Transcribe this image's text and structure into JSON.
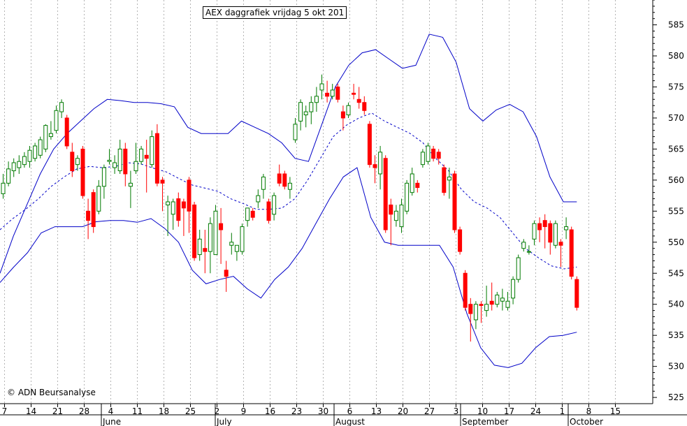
{
  "chart_title": "AEX daggrafiek vrijdag 5 okt 201",
  "copyright": "© ADN Beursanalyse",
  "colors": {
    "up": "#007a00",
    "down": "#ff0000",
    "band": "#0000c8",
    "grid": "#b4b4b4"
  },
  "chart_data": {
    "type": "candlestick",
    "title": "AEX daggrafiek vrijdag 5 okt 201",
    "ylim": [
      524,
      589
    ],
    "y_ticks": [
      525,
      530,
      535,
      540,
      545,
      550,
      555,
      560,
      565,
      570,
      575,
      580,
      585
    ],
    "x_tick_labels": [
      "7",
      "14",
      "21",
      "28",
      "4",
      "11",
      "18",
      "25",
      "2",
      "9",
      "16",
      "23",
      "30",
      "6",
      "13",
      "20",
      "27",
      "3",
      "10",
      "17",
      "24",
      "1",
      "8",
      "15"
    ],
    "month_labels": [
      "June",
      "July",
      "August",
      "September",
      "October"
    ],
    "grid": "vertical dashed",
    "candles": [
      {
        "o": 557.8,
        "h": 561,
        "l": 557,
        "c": 559.5
      },
      {
        "o": 559.5,
        "h": 563,
        "l": 559,
        "c": 561.8
      },
      {
        "o": 561.5,
        "h": 563.5,
        "l": 560.5,
        "c": 562.8
      },
      {
        "o": 562,
        "h": 564,
        "l": 561,
        "c": 563
      },
      {
        "o": 562.5,
        "h": 564.5,
        "l": 562,
        "c": 563.8
      },
      {
        "o": 563,
        "h": 565.5,
        "l": 562,
        "c": 564.8
      },
      {
        "o": 563.5,
        "h": 566,
        "l": 563,
        "c": 565.5
      },
      {
        "o": 564,
        "h": 567,
        "l": 563.5,
        "c": 566.5
      },
      {
        "o": 565,
        "h": 569,
        "l": 564.5,
        "c": 568.8
      },
      {
        "o": 567,
        "h": 569.5,
        "l": 566.5,
        "c": 567.5
      },
      {
        "o": 568,
        "h": 572,
        "l": 567.5,
        "c": 571.2
      },
      {
        "o": 571,
        "h": 573,
        "l": 570,
        "c": 572.5
      },
      {
        "o": 570,
        "h": 570.5,
        "l": 565,
        "c": 565.5
      },
      {
        "o": 564.5,
        "h": 566,
        "l": 560.5,
        "c": 561.5
      },
      {
        "o": 562.5,
        "h": 564,
        "l": 561.5,
        "c": 563.5
      },
      {
        "o": 565,
        "h": 565.5,
        "l": 557,
        "c": 557.5
      },
      {
        "o": 555,
        "h": 557,
        "l": 550.5,
        "c": 553.5
      },
      {
        "o": 558,
        "h": 558.5,
        "l": 551.5,
        "c": 552.5
      },
      {
        "o": 555,
        "h": 560,
        "l": 554.5,
        "c": 559
      },
      {
        "o": 559,
        "h": 562.5,
        "l": 557,
        "c": 562
      },
      {
        "o": 563,
        "h": 565,
        "l": 562.5,
        "c": 563.2
      },
      {
        "o": 562,
        "h": 564,
        "l": 561,
        "c": 562.8
      },
      {
        "o": 561.5,
        "h": 566.5,
        "l": 561,
        "c": 565
      },
      {
        "o": 565,
        "h": 566,
        "l": 559,
        "c": 561
      },
      {
        "o": 559,
        "h": 561.5,
        "l": 555.5,
        "c": 559.5
      },
      {
        "o": 561.5,
        "h": 566,
        "l": 561,
        "c": 563
      },
      {
        "o": 563,
        "h": 565.5,
        "l": 562.5,
        "c": 565
      },
      {
        "o": 564,
        "h": 566.5,
        "l": 558,
        "c": 563.5
      },
      {
        "o": 562.5,
        "h": 568,
        "l": 562,
        "c": 567
      },
      {
        "o": 567.5,
        "h": 569,
        "l": 559,
        "c": 559.5
      },
      {
        "o": 560,
        "h": 560.5,
        "l": 555,
        "c": 559.5
      },
      {
        "o": 556,
        "h": 557.5,
        "l": 551,
        "c": 556.5
      },
      {
        "o": 554.5,
        "h": 557,
        "l": 552,
        "c": 556.5
      },
      {
        "o": 557,
        "h": 558,
        "l": 552.5,
        "c": 553.5
      },
      {
        "o": 556.5,
        "h": 557,
        "l": 551,
        "c": 555.5
      },
      {
        "o": 560,
        "h": 560.5,
        "l": 551.5,
        "c": 555
      },
      {
        "o": 556,
        "h": 556.5,
        "l": 547,
        "c": 547.5
      },
      {
        "o": 548,
        "h": 552,
        "l": 547,
        "c": 550.5
      },
      {
        "o": 549,
        "h": 552,
        "l": 545,
        "c": 548.5
      },
      {
        "o": 548.5,
        "h": 554,
        "l": 545,
        "c": 553
      },
      {
        "o": 548,
        "h": 556,
        "l": 548,
        "c": 555
      },
      {
        "o": 553,
        "h": 555.5,
        "l": 546.5,
        "c": 552
      },
      {
        "o": 545.5,
        "h": 547,
        "l": 542,
        "c": 544.5
      },
      {
        "o": 549.5,
        "h": 551.5,
        "l": 548,
        "c": 550
      },
      {
        "o": 548.5,
        "h": 549,
        "l": 547,
        "c": 549.5
      },
      {
        "o": 548.5,
        "h": 553,
        "l": 548,
        "c": 552.5
      },
      {
        "o": 553.5,
        "h": 555.5,
        "l": 552.5,
        "c": 555.5
      },
      {
        "o": 555,
        "h": 555.5,
        "l": 553.5,
        "c": 554
      },
      {
        "o": 556.5,
        "h": 558.5,
        "l": 555.5,
        "c": 557.5
      },
      {
        "o": 558.5,
        "h": 561,
        "l": 557,
        "c": 560.5
      },
      {
        "o": 556.5,
        "h": 557,
        "l": 553,
        "c": 553.5
      },
      {
        "o": 554.5,
        "h": 558,
        "l": 553.5,
        "c": 557.5
      },
      {
        "o": 561,
        "h": 562.5,
        "l": 559,
        "c": 559.5
      },
      {
        "o": 561,
        "h": 561.5,
        "l": 558.5,
        "c": 559
      },
      {
        "o": 558.5,
        "h": 560.5,
        "l": 557,
        "c": 559.5
      },
      {
        "o": 566.5,
        "h": 570,
        "l": 566,
        "c": 569
      },
      {
        "o": 569.5,
        "h": 573,
        "l": 568,
        "c": 572.5
      },
      {
        "o": 570.5,
        "h": 572,
        "l": 568.5,
        "c": 571
      },
      {
        "o": 571,
        "h": 573.5,
        "l": 569,
        "c": 572.5
      },
      {
        "o": 572.5,
        "h": 575,
        "l": 571,
        "c": 573.5
      },
      {
        "o": 574.5,
        "h": 577,
        "l": 573,
        "c": 575.5
      },
      {
        "o": 574,
        "h": 576,
        "l": 572.5,
        "c": 573.5
      },
      {
        "o": 573.5,
        "h": 575.5,
        "l": 573,
        "c": 574.5
      },
      {
        "o": 575,
        "h": 575.5,
        "l": 572.5,
        "c": 573
      },
      {
        "o": 571,
        "h": 572,
        "l": 568,
        "c": 570
      },
      {
        "o": 570.5,
        "h": 572.5,
        "l": 570,
        "c": 572
      },
      {
        "o": 574,
        "h": 575.5,
        "l": 573,
        "c": 573.8
      },
      {
        "o": 573,
        "h": 575,
        "l": 571.5,
        "c": 572.5
      },
      {
        "o": 572.5,
        "h": 573.5,
        "l": 570.5,
        "c": 571.2
      },
      {
        "o": 569,
        "h": 569.5,
        "l": 562,
        "c": 562.5
      },
      {
        "o": 562.5,
        "h": 564,
        "l": 559.5,
        "c": 562
      },
      {
        "o": 561,
        "h": 565.5,
        "l": 558.5,
        "c": 564.5
      },
      {
        "o": 563.5,
        "h": 564,
        "l": 551.5,
        "c": 552
      },
      {
        "o": 556,
        "h": 557,
        "l": 549.5,
        "c": 554.5
      },
      {
        "o": 553.5,
        "h": 556,
        "l": 552.5,
        "c": 555
      },
      {
        "o": 552.5,
        "h": 557,
        "l": 551.5,
        "c": 556
      },
      {
        "o": 555,
        "h": 560,
        "l": 554.5,
        "c": 559.5
      },
      {
        "o": 558,
        "h": 562,
        "l": 557.5,
        "c": 561
      },
      {
        "o": 559.5,
        "h": 560,
        "l": 558,
        "c": 558.8
      },
      {
        "o": 562.5,
        "h": 565,
        "l": 562,
        "c": 564.5
      },
      {
        "o": 563,
        "h": 566,
        "l": 562.5,
        "c": 565.5
      },
      {
        "o": 565,
        "h": 565.5,
        "l": 563,
        "c": 563.5
      },
      {
        "o": 564.5,
        "h": 565,
        "l": 562.5,
        "c": 563.5
      },
      {
        "o": 562,
        "h": 562.5,
        "l": 557.5,
        "c": 558
      },
      {
        "o": 560,
        "h": 562,
        "l": 557,
        "c": 560.5
      },
      {
        "o": 561,
        "h": 561.5,
        "l": 551.5,
        "c": 552
      },
      {
        "o": 552,
        "h": 552.5,
        "l": 548,
        "c": 548.5
      },
      {
        "o": 545,
        "h": 545.5,
        "l": 539,
        "c": 539.5
      },
      {
        "o": 540,
        "h": 541,
        "l": 534,
        "c": 538.5
      },
      {
        "o": 537.5,
        "h": 540.5,
        "l": 536,
        "c": 540
      },
      {
        "o": 540,
        "h": 540.5,
        "l": 537,
        "c": 539.8
      },
      {
        "o": 539,
        "h": 543,
        "l": 538,
        "c": 540
      },
      {
        "o": 540.5,
        "h": 543.5,
        "l": 539,
        "c": 540
      },
      {
        "o": 540,
        "h": 542,
        "l": 539.5,
        "c": 541.5
      },
      {
        "o": 540.5,
        "h": 542.5,
        "l": 539,
        "c": 541
      },
      {
        "o": 539.5,
        "h": 542,
        "l": 539,
        "c": 540.5
      },
      {
        "o": 541,
        "h": 544.5,
        "l": 540,
        "c": 544
      },
      {
        "o": 544,
        "h": 548,
        "l": 543.5,
        "c": 547.5
      },
      {
        "o": 549,
        "h": 550.5,
        "l": 548.5,
        "c": 550
      },
      {
        "o": 548.5,
        "h": 549.5,
        "l": 548,
        "c": 548.5
      },
      {
        "o": 550.5,
        "h": 553.5,
        "l": 549.5,
        "c": 553
      },
      {
        "o": 553,
        "h": 554,
        "l": 550,
        "c": 552
      },
      {
        "o": 553.5,
        "h": 554.5,
        "l": 549,
        "c": 552.5
      },
      {
        "o": 553,
        "h": 553.5,
        "l": 548,
        "c": 550
      },
      {
        "o": 549.5,
        "h": 553.5,
        "l": 549,
        "c": 553
      },
      {
        "o": 550,
        "h": 550.5,
        "l": 546,
        "c": 549.5
      },
      {
        "o": 552,
        "h": 554,
        "l": 550.5,
        "c": 552.5
      },
      {
        "o": 552,
        "h": 552.5,
        "l": 544,
        "c": 544.5
      },
      {
        "o": 544,
        "h": 544.5,
        "l": 539,
        "c": 539.5
      }
    ],
    "bollinger_upper": [
      545,
      551,
      556,
      561,
      565,
      567.5,
      569.5,
      571.5,
      573,
      572.8,
      572.5,
      572.5,
      572.3,
      571.8,
      568.5,
      567.5,
      567.5,
      567.5,
      569.5,
      568.5,
      567.5,
      566,
      563.5,
      563,
      569,
      575,
      578.5,
      580.5,
      581,
      579.5,
      578,
      578.5,
      583.5,
      583,
      579,
      571.5,
      569.5,
      571.3,
      572.2,
      571,
      567,
      560.5,
      556.5,
      556.5
    ],
    "bollinger_middle": [
      552,
      553.8,
      555.3,
      557,
      559,
      560.5,
      561.8,
      562.2,
      562,
      562.2,
      562.8,
      562.6,
      561.9,
      561.3,
      560.2,
      559.2,
      558.7,
      558.2,
      557,
      556.2,
      555.3,
      555.3,
      555.5,
      557,
      560,
      563.5,
      567,
      568.8,
      570,
      570.8,
      569.5,
      568.5,
      567.5,
      566,
      563.5,
      561.5,
      558.5,
      556.5,
      555.5,
      554,
      551.5,
      549,
      547.5,
      546.2,
      545.7,
      546
    ],
    "bollinger_lower": [
      543.5,
      546,
      548.3,
      551.5,
      552.5,
      552.5,
      552.5,
      553.3,
      553.5,
      553.5,
      553.2,
      553.8,
      552.2,
      550,
      545.5,
      543.3,
      544,
      544.5,
      542.5,
      541,
      544,
      546,
      549,
      553,
      557,
      560.5,
      562,
      554,
      550,
      549.5,
      549.5,
      549.5,
      549.5,
      546,
      538.5,
      533,
      530.2,
      529.8,
      530.5,
      533,
      534.8,
      535,
      535.5
    ]
  }
}
